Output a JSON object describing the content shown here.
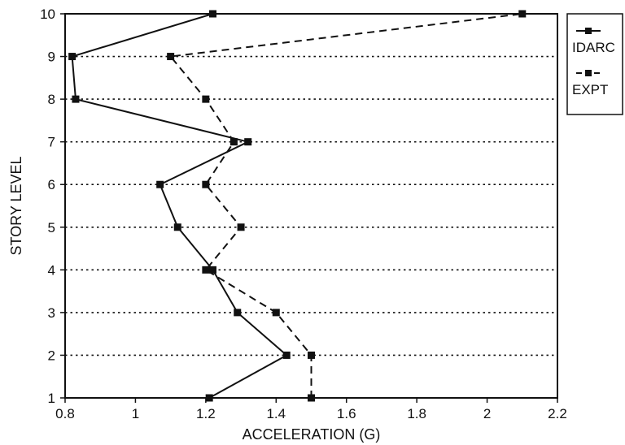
{
  "chart_data": {
    "type": "line",
    "title": "",
    "xlabel": "ACCELERATION (G)",
    "ylabel": "STORY LEVEL",
    "xlim": [
      0.8,
      2.2
    ],
    "ylim": [
      1,
      10
    ],
    "x_ticks": [
      "0.8",
      "1",
      "1.2",
      "1.4",
      "1.6",
      "1.8",
      "2",
      "2.2"
    ],
    "y_ticks": [
      "1",
      "2",
      "3",
      "4",
      "5",
      "6",
      "7",
      "8",
      "9",
      "10"
    ],
    "grid": "horizontal dotted",
    "legend_position": "right",
    "series": [
      {
        "name": "IDARC",
        "style": "solid",
        "color": "#111111",
        "points": [
          {
            "x": 1.21,
            "y": 1
          },
          {
            "x": 1.43,
            "y": 2
          },
          {
            "x": 1.29,
            "y": 3
          },
          {
            "x": 1.22,
            "y": 4
          },
          {
            "x": 1.12,
            "y": 5
          },
          {
            "x": 1.07,
            "y": 6
          },
          {
            "x": 1.32,
            "y": 7
          },
          {
            "x": 0.83,
            "y": 8
          },
          {
            "x": 0.82,
            "y": 9
          },
          {
            "x": 1.22,
            "y": 10
          }
        ]
      },
      {
        "name": "EXPT",
        "style": "dashed",
        "color": "#111111",
        "points": [
          {
            "x": 1.5,
            "y": 1
          },
          {
            "x": 1.5,
            "y": 2
          },
          {
            "x": 1.4,
            "y": 3
          },
          {
            "x": 1.2,
            "y": 4
          },
          {
            "x": 1.3,
            "y": 5
          },
          {
            "x": 1.2,
            "y": 6
          },
          {
            "x": 1.28,
            "y": 7
          },
          {
            "x": 1.2,
            "y": 8
          },
          {
            "x": 1.1,
            "y": 9
          },
          {
            "x": 2.1,
            "y": 10
          }
        ]
      }
    ]
  }
}
